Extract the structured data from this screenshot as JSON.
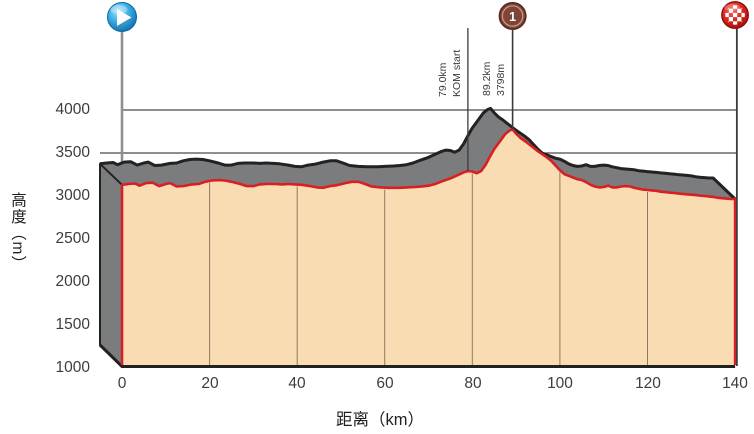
{
  "axes": {
    "y": {
      "title": "高度（m）",
      "ticks": [
        "4000",
        "3500",
        "3000",
        "2500",
        "2000",
        "1500",
        "1000"
      ]
    },
    "x": {
      "title": "距离（km）",
      "ticks": [
        "0",
        "20",
        "40",
        "60",
        "80",
        "100",
        "120",
        "140"
      ]
    }
  },
  "annotations": {
    "kom_start": {
      "line1": "79.0km",
      "line2": "KOM start"
    },
    "summit": {
      "line1": "89.2km",
      "line2": "3798m"
    }
  },
  "icons": {
    "start": {
      "name": "start-play-icon"
    },
    "kom": {
      "name": "kom-mountain-icon",
      "number": "1"
    },
    "finish": {
      "name": "finish-checkered-icon"
    }
  },
  "colors": {
    "profile_fill": "#fadcb3",
    "profile_line": "#d91f26",
    "ribbon_gray": "#7b7c7e",
    "outline": "#222222",
    "gridline": "#4a4a4a",
    "km_gridline": "#6b5a47",
    "start_blue_dark": "#0b689d",
    "kom_brown": "#7d453a",
    "finish_red_dark": "#8f0f0a"
  },
  "chart_data": {
    "type": "area",
    "style": "3d-extruded-route-elevation-profile",
    "xlabel": "距离（km）",
    "ylabel": "高度（m）",
    "x_range": [
      0,
      140
    ],
    "y_range": [
      1000,
      4000
    ],
    "x_ticks": [
      0,
      20,
      40,
      60,
      80,
      100,
      120,
      140
    ],
    "y_ticks": [
      1000,
      1500,
      2000,
      2500,
      3000,
      3500,
      4000
    ],
    "visible_horizontal_gridlines": [
      3500,
      4000
    ],
    "legend": "none",
    "annotations": {
      "kom_start": {
        "km": 79.0,
        "label_lines": [
          "79.0km",
          "KOM start"
        ]
      },
      "summit": {
        "km": 89.2,
        "elevation_m": 3798,
        "label_lines": [
          "89.2km",
          "3798m"
        ]
      },
      "start_marker_km": 0,
      "finish_marker_km": 140
    },
    "profile": [
      [
        0,
        3130
      ],
      [
        1.5,
        3140
      ],
      [
        3,
        3145
      ],
      [
        4,
        3120
      ],
      [
        5.5,
        3150
      ],
      [
        7,
        3155
      ],
      [
        8.5,
        3115
      ],
      [
        10,
        3140
      ],
      [
        11,
        3150
      ],
      [
        12.5,
        3110
      ],
      [
        14,
        3115
      ],
      [
        16,
        3135
      ],
      [
        17.5,
        3140
      ],
      [
        19,
        3165
      ],
      [
        20.5,
        3180
      ],
      [
        22,
        3185
      ],
      [
        23.5,
        3180
      ],
      [
        25,
        3165
      ],
      [
        27,
        3140
      ],
      [
        28.5,
        3115
      ],
      [
        30,
        3115
      ],
      [
        31.5,
        3135
      ],
      [
        33,
        3140
      ],
      [
        35,
        3140
      ],
      [
        36.5,
        3135
      ],
      [
        38,
        3140
      ],
      [
        39.5,
        3135
      ],
      [
        41,
        3130
      ],
      [
        43,
        3115
      ],
      [
        44.5,
        3100
      ],
      [
        46,
        3095
      ],
      [
        47.5,
        3115
      ],
      [
        49,
        3125
      ],
      [
        51,
        3150
      ],
      [
        52.5,
        3165
      ],
      [
        54,
        3165
      ],
      [
        55.5,
        3140
      ],
      [
        57,
        3110
      ],
      [
        59,
        3100
      ],
      [
        61,
        3095
      ],
      [
        63.5,
        3095
      ],
      [
        65,
        3100
      ],
      [
        67,
        3105
      ],
      [
        68.5,
        3110
      ],
      [
        70,
        3120
      ],
      [
        71.5,
        3140
      ],
      [
        73,
        3170
      ],
      [
        75,
        3205
      ],
      [
        76.5,
        3240
      ],
      [
        78,
        3275
      ],
      [
        79,
        3290
      ],
      [
        80,
        3285
      ],
      [
        81,
        3265
      ],
      [
        82,
        3290
      ],
      [
        83,
        3360
      ],
      [
        84,
        3455
      ],
      [
        85,
        3545
      ],
      [
        86.5,
        3650
      ],
      [
        87.5,
        3720
      ],
      [
        88.5,
        3760
      ],
      [
        89.2,
        3775
      ],
      [
        90,
        3725
      ],
      [
        91,
        3675
      ],
      [
        92,
        3640
      ],
      [
        93,
        3600
      ],
      [
        94,
        3560
      ],
      [
        95,
        3520
      ],
      [
        96,
        3485
      ],
      [
        97,
        3450
      ],
      [
        98,
        3410
      ],
      [
        99,
        3355
      ],
      [
        100,
        3300
      ],
      [
        101,
        3255
      ],
      [
        102,
        3235
      ],
      [
        103,
        3215
      ],
      [
        104,
        3195
      ],
      [
        105,
        3185
      ],
      [
        106,
        3160
      ],
      [
        107,
        3130
      ],
      [
        108,
        3110
      ],
      [
        109,
        3100
      ],
      [
        110,
        3105
      ],
      [
        111,
        3120
      ],
      [
        112,
        3100
      ],
      [
        113,
        3100
      ],
      [
        114,
        3110
      ],
      [
        115,
        3115
      ],
      [
        116,
        3110
      ],
      [
        117,
        3095
      ],
      [
        118,
        3085
      ],
      [
        119,
        3075
      ],
      [
        120,
        3070
      ],
      [
        121,
        3065
      ],
      [
        122,
        3060
      ],
      [
        123,
        3050
      ],
      [
        124,
        3045
      ],
      [
        125,
        3040
      ],
      [
        126,
        3035
      ],
      [
        127,
        3030
      ],
      [
        128,
        3025
      ],
      [
        129,
        3020
      ],
      [
        130,
        3015
      ],
      [
        131,
        3010
      ],
      [
        132,
        3005
      ],
      [
        133,
        3000
      ],
      [
        134,
        2995
      ],
      [
        135,
        2990
      ],
      [
        136,
        2980
      ],
      [
        137,
        2975
      ],
      [
        138,
        2970
      ],
      [
        139,
        2965
      ],
      [
        140,
        2965
      ]
    ]
  }
}
